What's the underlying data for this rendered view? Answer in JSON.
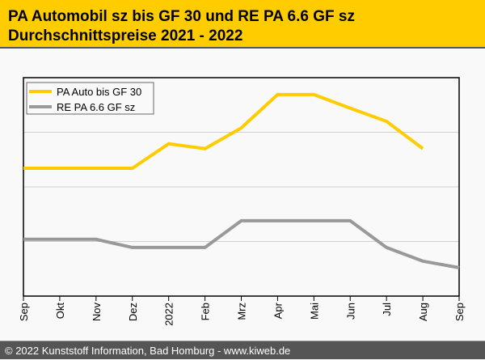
{
  "header": {
    "title_line1": "PA Automobil sz bis GF 30 und RE PA 6.6 GF sz",
    "title_line2": "Durchschnittspreise 2021 - 2022"
  },
  "footer": {
    "text": "© 2022 Kunststoff Information, Bad Homburg - www.kiweb.de"
  },
  "chart_data": {
    "type": "line",
    "title": "PA Automobil sz bis GF 30 und RE PA 6.6 GF sz Durchschnittspreise 2021 - 2022",
    "xlabel": "",
    "ylabel": "",
    "categories": [
      "Sep",
      "Okt",
      "Nov",
      "Dez",
      "2022",
      "Feb",
      "Mrz",
      "Apr",
      "Mai",
      "Jun",
      "Jul",
      "Aug",
      "Sep"
    ],
    "ylim": [
      0,
      4
    ],
    "y_note": "relative units (no y tick labels shown); gridlines at 1, 2, 3",
    "grid": true,
    "legend_position": "top-left",
    "series": [
      {
        "name": "PA Auto bis GF 30",
        "color": "#ffcc00",
        "values": [
          2.34,
          2.34,
          2.34,
          2.34,
          2.79,
          2.7,
          3.08,
          3.69,
          3.69,
          3.44,
          3.2,
          2.7,
          null
        ]
      },
      {
        "name": "RE PA 6.6 GF sz",
        "color": "#999999",
        "values": [
          1.04,
          1.04,
          1.04,
          0.89,
          0.89,
          0.89,
          1.38,
          1.38,
          1.38,
          1.38,
          0.89,
          0.64,
          0.52
        ]
      }
    ]
  }
}
